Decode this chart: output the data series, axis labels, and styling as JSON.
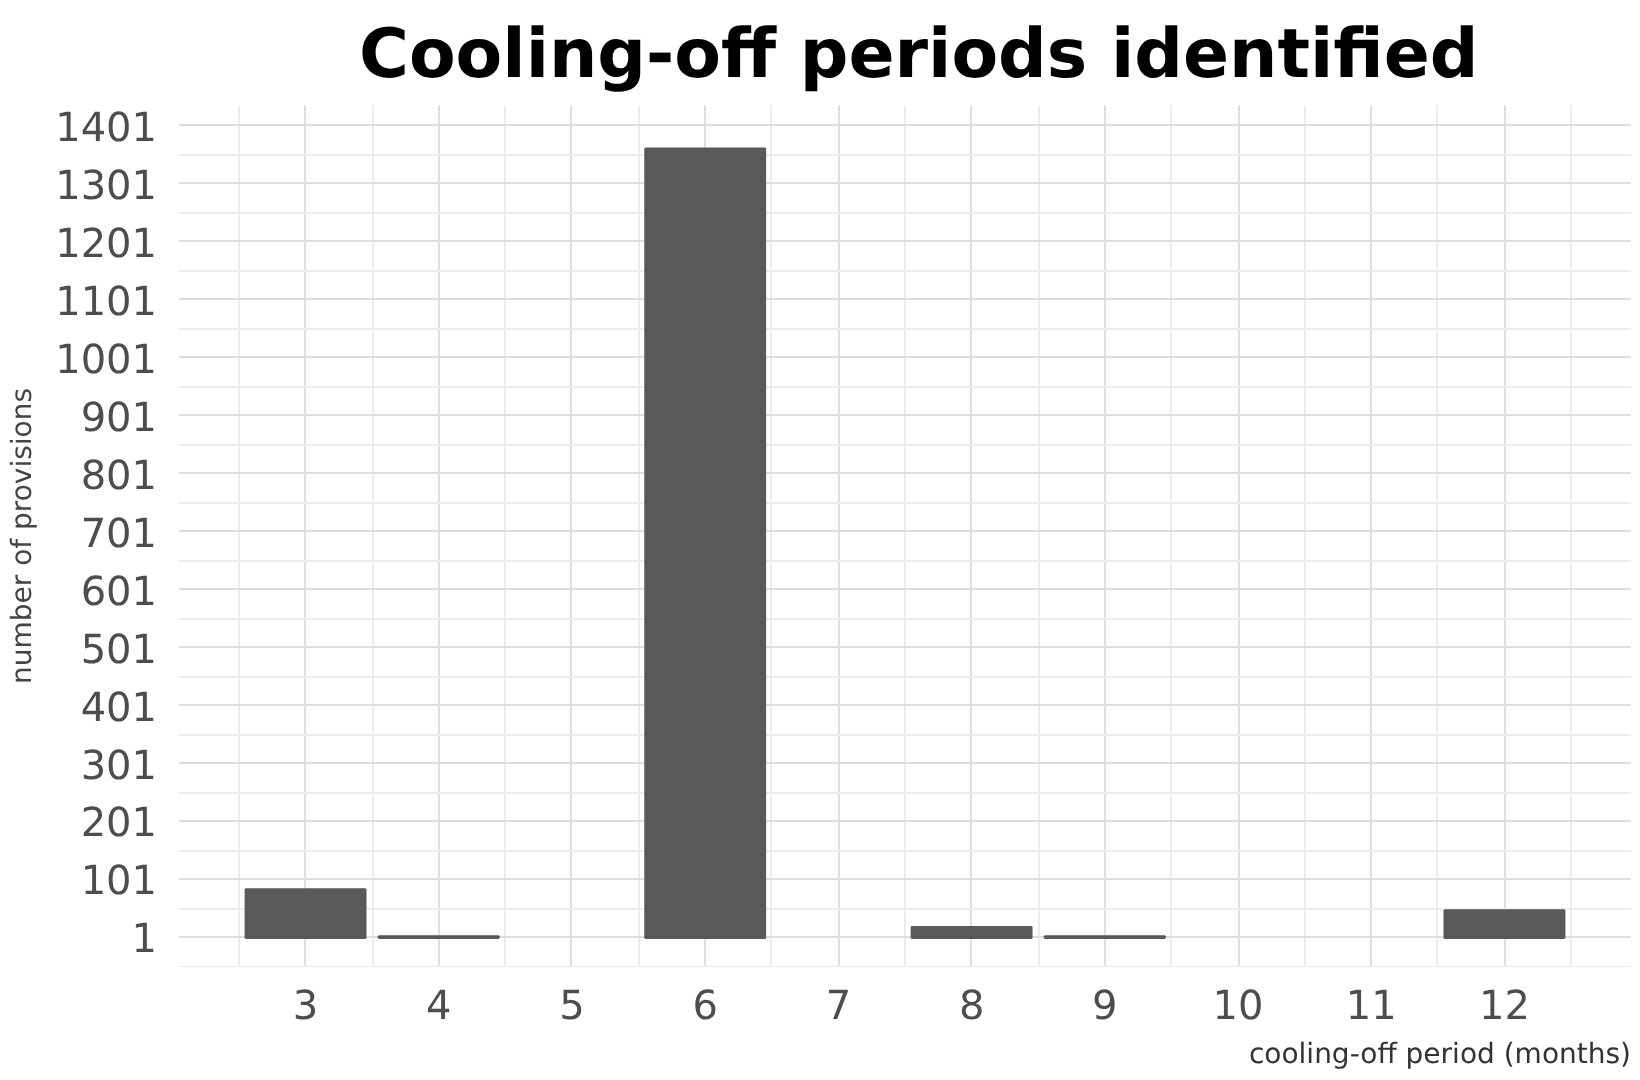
{
  "chart_data": {
    "type": "bar",
    "title": "Cooling-off periods identified",
    "xlabel": "cooling-off period (months)",
    "ylabel": "number of provisions",
    "x": [
      3,
      4,
      6,
      8,
      9,
      12
    ],
    "values": [
      84,
      3,
      1362,
      19,
      3,
      48
    ],
    "color": "#595959",
    "xlim": [
      2.05,
      12.95
    ],
    "xticks": [
      3,
      4,
      5,
      6,
      7,
      8,
      9,
      10,
      11,
      12
    ],
    "ylim": [
      -50,
      1437
    ],
    "yticks": [
      1,
      101,
      201,
      301,
      401,
      501,
      601,
      701,
      801,
      901,
      1001,
      1101,
      1201,
      1301,
      1401
    ],
    "grid": true
  }
}
